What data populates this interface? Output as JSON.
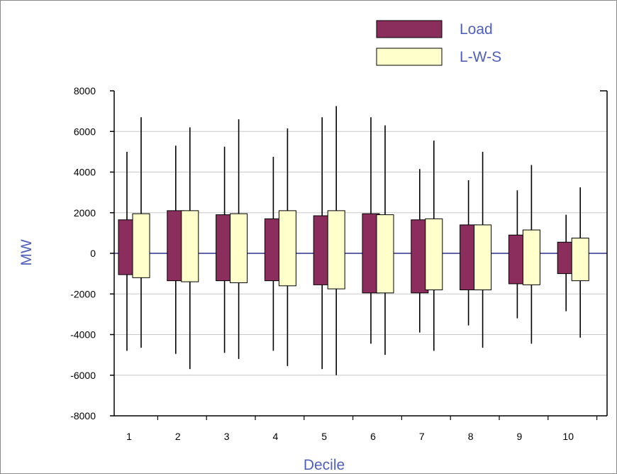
{
  "chart_data": {
    "type": "boxplot",
    "xlabel": "Decile",
    "ylabel": "MW",
    "ylim": [
      -8000,
      8000
    ],
    "yticks": [
      8000,
      6000,
      4000,
      2000,
      0,
      -2000,
      -4000,
      -6000,
      -8000
    ],
    "categories": [
      "1",
      "2",
      "3",
      "4",
      "5",
      "6",
      "7",
      "8",
      "9",
      "10"
    ],
    "grid": true,
    "legend_position": "top-right",
    "colors": {
      "Load": "#8b2e5e",
      "L-W-S": "#ffffcc",
      "zero_line": "#2b2f8e",
      "text": "#4e5fbd"
    },
    "series": [
      {
        "name": "Load",
        "q1": [
          -1050,
          -1350,
          -1350,
          -1350,
          -1550,
          -1950,
          -1950,
          -1800,
          -1500,
          -1000
        ],
        "q3": [
          1650,
          2100,
          1900,
          1700,
          1850,
          1950,
          1650,
          1400,
          900,
          550
        ],
        "lower": [
          -4800,
          -4950,
          -4900,
          -4800,
          -5700,
          -4450,
          -3900,
          -3550,
          -3200,
          -2850
        ],
        "upper": [
          5000,
          5300,
          5250,
          4750,
          6700,
          6700,
          4150,
          3600,
          3100,
          1900
        ]
      },
      {
        "name": "L-W-S",
        "q1": [
          -1200,
          -1400,
          -1450,
          -1600,
          -1750,
          -1950,
          -1800,
          -1800,
          -1550,
          -1350
        ],
        "q3": [
          1950,
          2100,
          1950,
          2100,
          2100,
          1900,
          1700,
          1400,
          1150,
          750
        ],
        "lower": [
          -4650,
          -5700,
          -5200,
          -5550,
          -6000,
          -5000,
          -4800,
          -4650,
          -4450,
          -4150
        ],
        "upper": [
          6700,
          6200,
          6600,
          6150,
          7250,
          6300,
          5550,
          5000,
          4350,
          3250
        ]
      }
    ]
  }
}
